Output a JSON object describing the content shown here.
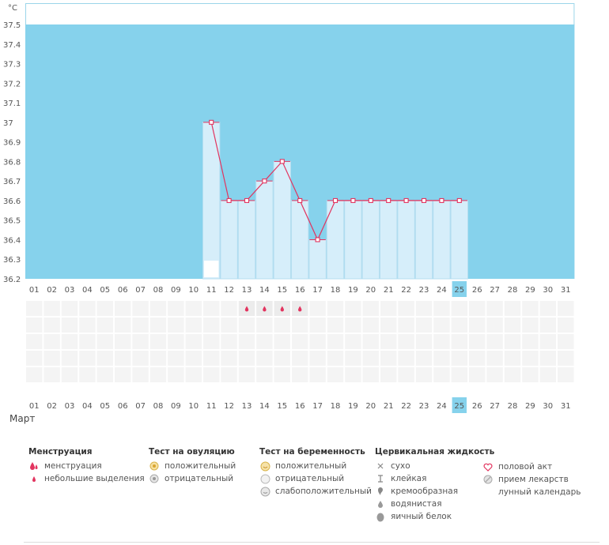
{
  "chart_data": {
    "type": "bar",
    "unit_label": "°C",
    "ylim": [
      36.2,
      37.5
    ],
    "y_ticks": [
      "37.5",
      "37.4",
      "37.3",
      "37.2",
      "37.1",
      "37",
      "36.9",
      "36.8",
      "36.7",
      "36.6",
      "36.5",
      "36.4",
      "36.3",
      "36.2"
    ],
    "days": [
      "01",
      "02",
      "03",
      "04",
      "05",
      "06",
      "07",
      "08",
      "09",
      "10",
      "11",
      "12",
      "13",
      "14",
      "15",
      "16",
      "17",
      "18",
      "19",
      "20",
      "21",
      "22",
      "23",
      "24",
      "25",
      "26",
      "27",
      "28",
      "29",
      "30",
      "31"
    ],
    "temperatures": [
      null,
      null,
      null,
      null,
      null,
      null,
      null,
      null,
      null,
      null,
      37.0,
      36.6,
      36.6,
      36.7,
      36.8,
      36.6,
      36.4,
      36.6,
      36.6,
      36.6,
      36.6,
      36.6,
      36.6,
      36.6,
      36.6,
      null,
      null,
      null,
      null,
      null,
      null
    ],
    "highlight_day": "25",
    "weekend_days": [
      "01",
      "02",
      "08",
      "09",
      "15",
      "16",
      "22",
      "23",
      "29",
      "30"
    ],
    "lunar_marker_day": "11",
    "spotting_days": [
      "13",
      "14",
      "15",
      "16"
    ],
    "month_label": "Март",
    "colors": {
      "plot_bg": "#86d2ec",
      "bar_fill": "#d6eefa",
      "bar_edge": "#b5def0",
      "line": "#e2345f",
      "highlight": "#86d2ec",
      "weekend_text": "#e0304f"
    }
  },
  "legend": {
    "menstruation": {
      "title": "Менструация",
      "items": [
        {
          "icon": "drop-large-icon",
          "label": "менструация"
        },
        {
          "icon": "drop-small-icon",
          "label": "небольшие выделения"
        }
      ]
    },
    "ovulation_test": {
      "title": "Тест на овуляцию",
      "items": [
        {
          "icon": "ovulation-positive-icon",
          "label": "положительный"
        },
        {
          "icon": "ovulation-negative-icon",
          "label": "отрицательный"
        }
      ]
    },
    "pregnancy_test": {
      "title": "Тест на беременность",
      "items": [
        {
          "icon": "pregnancy-positive-icon",
          "label": "положительный"
        },
        {
          "icon": "pregnancy-negative-icon",
          "label": "отрицательный"
        },
        {
          "icon": "pregnancy-weak-icon",
          "label": "слабоположительный"
        }
      ]
    },
    "cervical_fluid": {
      "title": "Цервикальная жидкость",
      "items": [
        {
          "icon": "cross-icon",
          "label": "сухо"
        },
        {
          "icon": "sticky-icon",
          "label": "клейкая"
        },
        {
          "icon": "creamy-icon",
          "label": "кремообразная"
        },
        {
          "icon": "watery-icon",
          "label": "водянистая"
        },
        {
          "icon": "egg-white-icon",
          "label": "яичный белок"
        }
      ]
    },
    "other": {
      "items": [
        {
          "icon": "heart-icon",
          "label": "половой акт"
        },
        {
          "icon": "pill-icon",
          "label": "прием лекарств"
        },
        {
          "icon": "moon-icon",
          "label": "лунный календарь"
        }
      ]
    }
  }
}
